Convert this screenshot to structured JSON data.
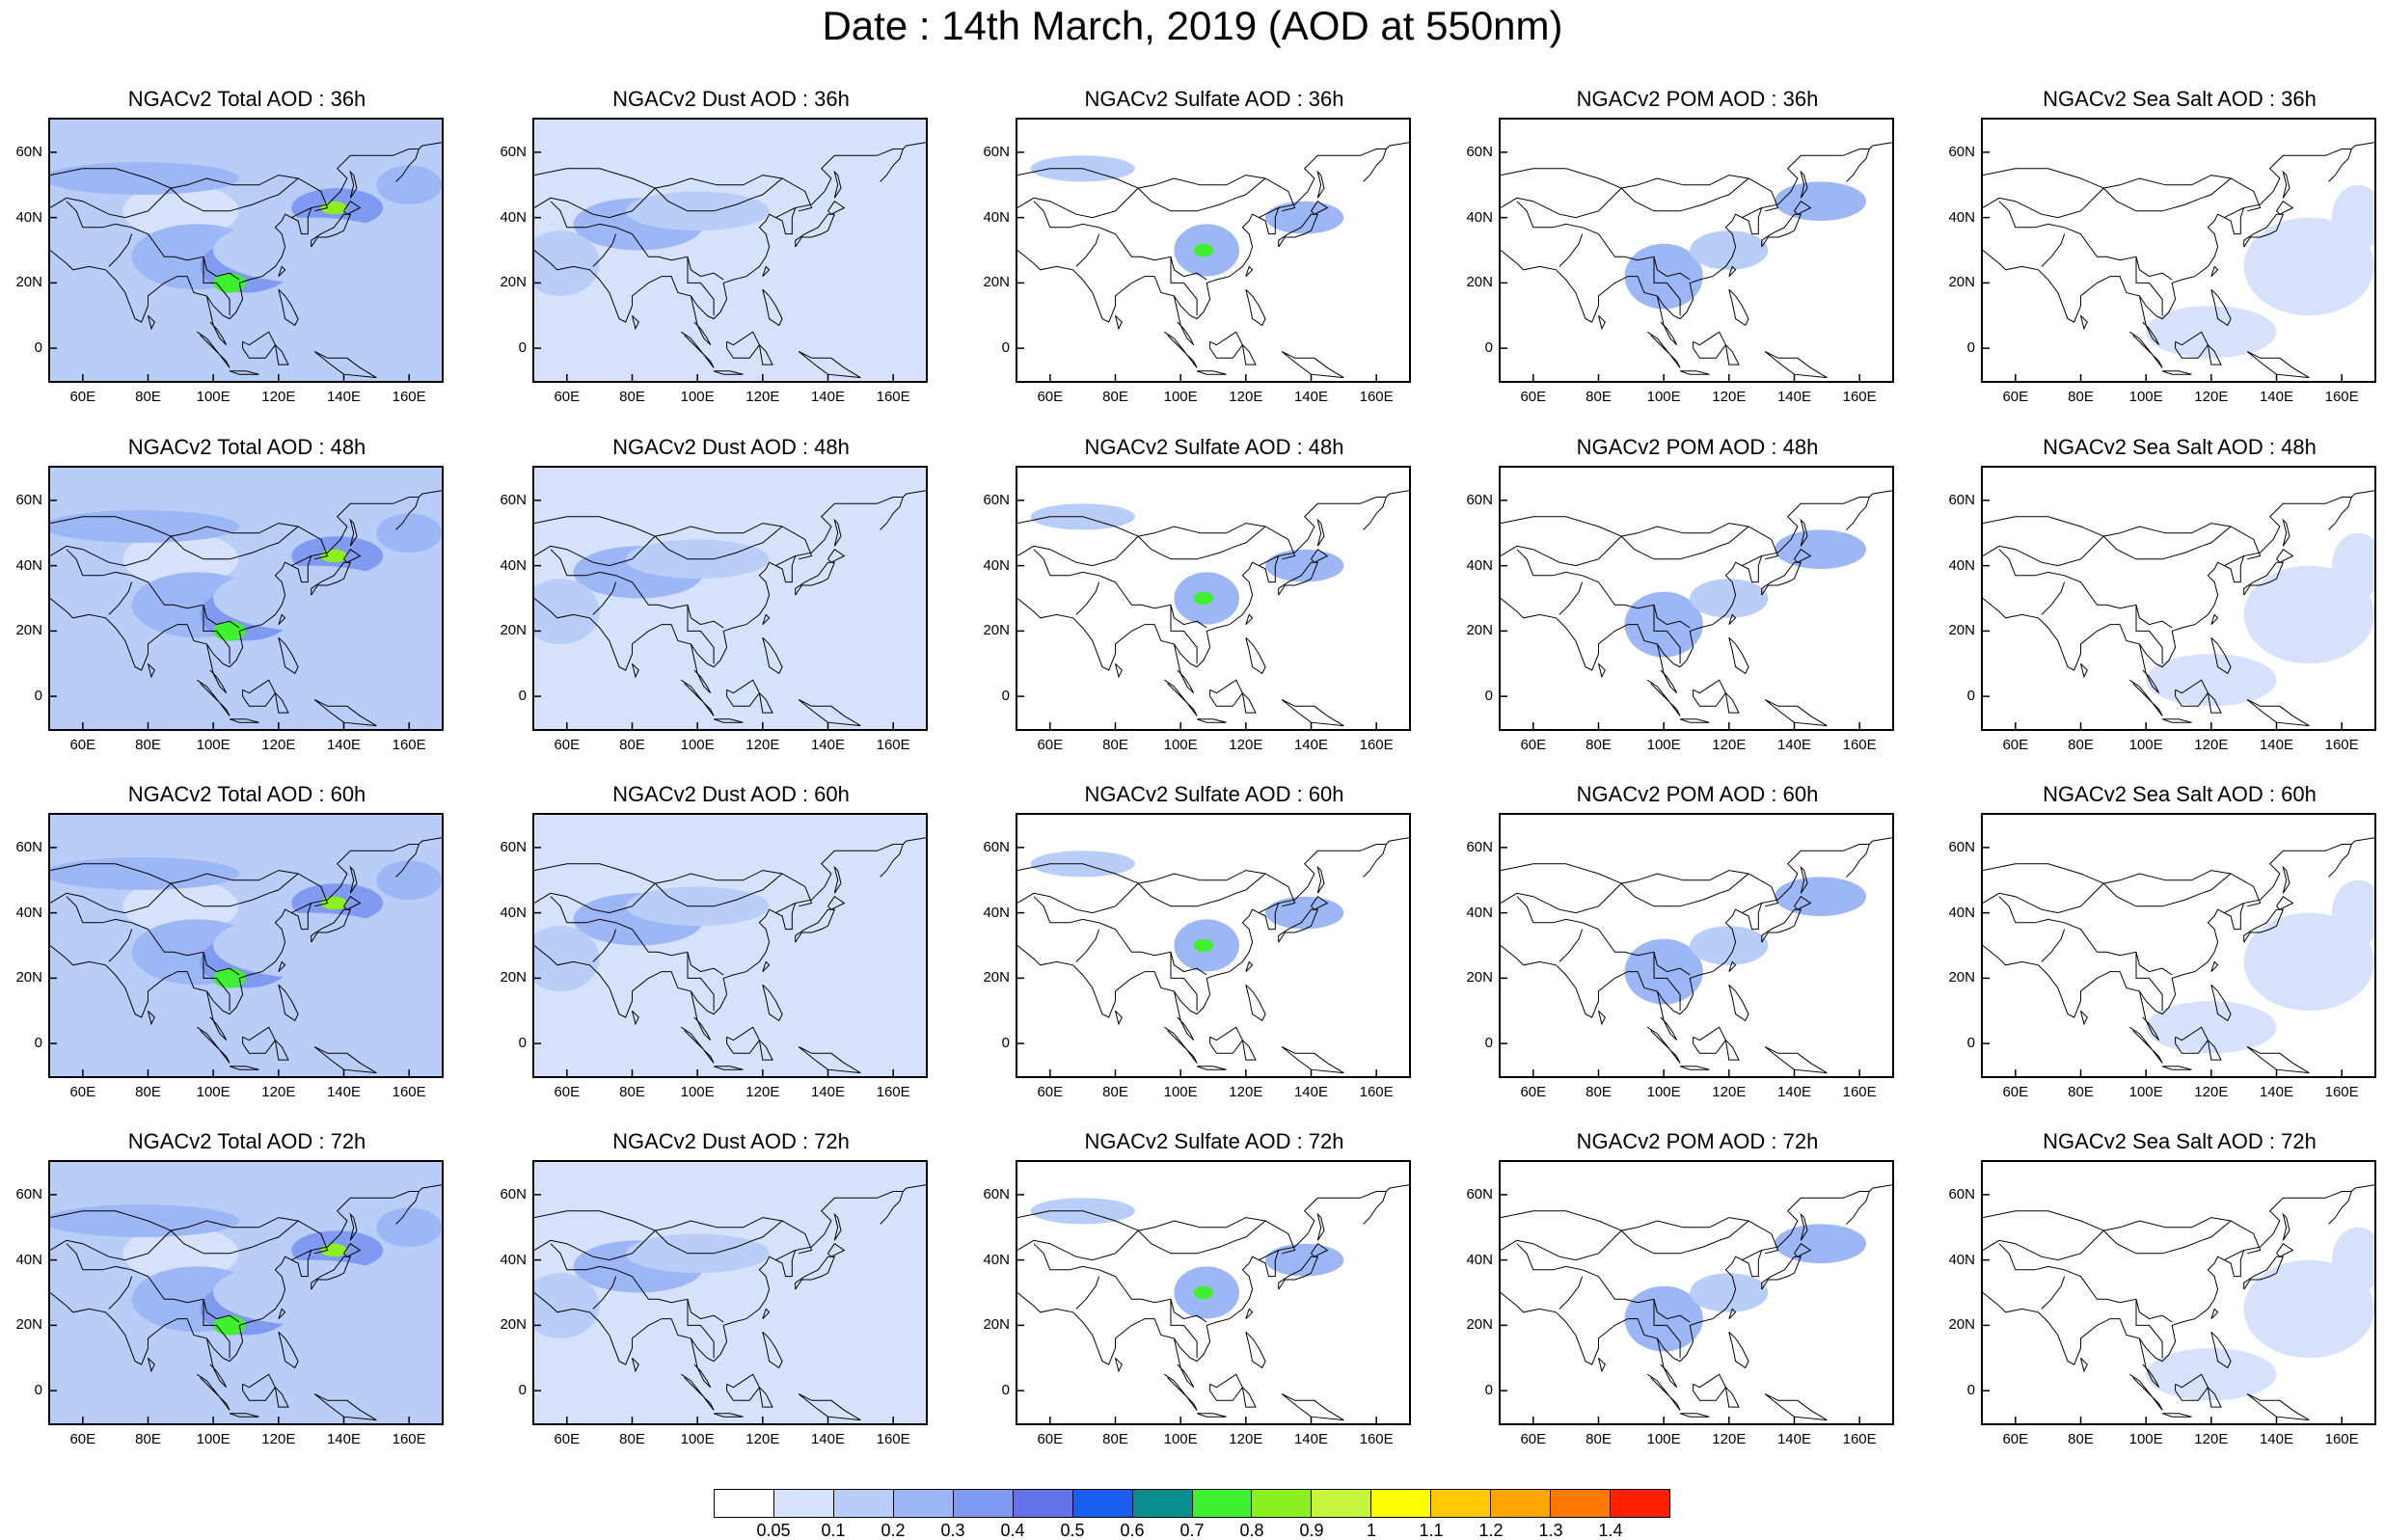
{
  "title": "Date : 14th March, 2019 (AOD at 550nm)",
  "map_extent": {
    "lon": [
      50,
      170
    ],
    "lat": [
      -10,
      70
    ]
  },
  "axis_ticks": {
    "lat": [
      {
        "value": 60,
        "label": "60N"
      },
      {
        "value": 40,
        "label": "40N"
      },
      {
        "value": 20,
        "label": "20N"
      },
      {
        "value": 0,
        "label": "0"
      }
    ],
    "lon": [
      {
        "value": 60,
        "label": "60E"
      },
      {
        "value": 80,
        "label": "80E"
      },
      {
        "value": 100,
        "label": "100E"
      },
      {
        "value": 120,
        "label": "120E"
      },
      {
        "value": 140,
        "label": "140E"
      },
      {
        "value": 160,
        "label": "160E"
      }
    ]
  },
  "panels": [
    {
      "title": "NGACv2 Total AOD : 36h",
      "species": "total"
    },
    {
      "title": "NGACv2 Dust AOD : 36h",
      "species": "dust"
    },
    {
      "title": "NGACv2 Sulfate AOD : 36h",
      "species": "sulfate"
    },
    {
      "title": "NGACv2 POM AOD : 36h",
      "species": "pom"
    },
    {
      "title": "NGACv2 Sea Salt AOD : 36h",
      "species": "seasalt"
    },
    {
      "title": "NGACv2 Total AOD : 48h",
      "species": "total"
    },
    {
      "title": "NGACv2 Dust AOD : 48h",
      "species": "dust"
    },
    {
      "title": "NGACv2 Sulfate AOD : 48h",
      "species": "sulfate"
    },
    {
      "title": "NGACv2 POM AOD : 48h",
      "species": "pom"
    },
    {
      "title": "NGACv2 Sea Salt AOD : 48h",
      "species": "seasalt"
    },
    {
      "title": "NGACv2 Total AOD : 60h",
      "species": "total"
    },
    {
      "title": "NGACv2 Dust AOD : 60h",
      "species": "dust"
    },
    {
      "title": "NGACv2 Sulfate AOD : 60h",
      "species": "sulfate"
    },
    {
      "title": "NGACv2 POM AOD : 60h",
      "species": "pom"
    },
    {
      "title": "NGACv2 Sea Salt AOD : 60h",
      "species": "seasalt"
    },
    {
      "title": "NGACv2 Total AOD : 72h",
      "species": "total"
    },
    {
      "title": "NGACv2 Dust AOD : 72h",
      "species": "dust"
    },
    {
      "title": "NGACv2 Sulfate AOD : 72h",
      "species": "sulfate"
    },
    {
      "title": "NGACv2 POM AOD : 72h",
      "species": "pom"
    },
    {
      "title": "NGACv2 Sea Salt  AOD : 72h",
      "species": "seasalt"
    }
  ],
  "colorbar": {
    "labels": [
      "0.05",
      "0.1",
      "0.2",
      "0.3",
      "0.4",
      "0.5",
      "0.6",
      "0.7",
      "0.8",
      "0.9",
      "1",
      "1.1",
      "1.2",
      "1.3",
      "1.4"
    ],
    "colors": [
      "#ffffff",
      "#d6e2fb",
      "#b9cdf9",
      "#9db6f5",
      "#7f9af0",
      "#6472ea",
      "#1a5ef0",
      "#0b8c8f",
      "#3ff030",
      "#8cf020",
      "#c6f53c",
      "#ffff00",
      "#ffc800",
      "#ffa500",
      "#ff7800",
      "#ff2000"
    ]
  },
  "aerosol_fields": {
    "total": [
      {
        "lon": 78,
        "lat": 52,
        "rlon": 30,
        "rlat": 5,
        "level": 3
      },
      {
        "lon": 95,
        "lat": 28,
        "rlon": 20,
        "rlat": 10,
        "level": 3
      },
      {
        "lon": 110,
        "lat": 25,
        "rlon": 14,
        "rlat": 8,
        "level": 4
      },
      {
        "lon": 105,
        "lat": 20,
        "rlon": 5,
        "rlat": 3,
        "level": 8
      },
      {
        "lon": 138,
        "lat": 43,
        "rlon": 14,
        "rlat": 6,
        "level": 4
      },
      {
        "lon": 137,
        "lat": 43,
        "rlon": 4,
        "rlat": 2,
        "level": 9
      },
      {
        "lon": 160,
        "lat": 50,
        "rlon": 10,
        "rlat": 6,
        "level": 3
      },
      {
        "lon": 60,
        "lat": 28,
        "rlon": 10,
        "rlat": 10,
        "level": 2
      },
      {
        "lon": 130,
        "lat": 30,
        "rlon": 30,
        "rlat": 10,
        "level": 2
      }
    ],
    "dust": [
      {
        "lon": 82,
        "lat": 38,
        "rlon": 20,
        "rlat": 8,
        "level": 3
      },
      {
        "lon": 58,
        "lat": 26,
        "rlon": 12,
        "rlat": 10,
        "level": 2
      },
      {
        "lon": 100,
        "lat": 42,
        "rlon": 22,
        "rlat": 6,
        "level": 2
      }
    ],
    "sulfate": [
      {
        "lon": 108,
        "lat": 30,
        "rlon": 10,
        "rlat": 8,
        "level": 3
      },
      {
        "lon": 138,
        "lat": 40,
        "rlon": 12,
        "rlat": 5,
        "level": 3
      },
      {
        "lon": 107,
        "lat": 30,
        "rlon": 3,
        "rlat": 2,
        "level": 8
      },
      {
        "lon": 70,
        "lat": 55,
        "rlon": 16,
        "rlat": 4,
        "level": 2
      }
    ],
    "pom": [
      {
        "lon": 100,
        "lat": 22,
        "rlon": 12,
        "rlat": 10,
        "level": 3
      },
      {
        "lon": 148,
        "lat": 45,
        "rlon": 14,
        "rlat": 6,
        "level": 3
      },
      {
        "lon": 120,
        "lat": 30,
        "rlon": 12,
        "rlat": 6,
        "level": 2
      }
    ],
    "seasalt": [
      {
        "lon": 150,
        "lat": 25,
        "rlon": 20,
        "rlat": 15,
        "level": 1
      },
      {
        "lon": 120,
        "lat": 5,
        "rlon": 20,
        "rlat": 8,
        "level": 1
      },
      {
        "lon": 165,
        "lat": 40,
        "rlon": 8,
        "rlat": 10,
        "level": 1
      }
    ]
  }
}
